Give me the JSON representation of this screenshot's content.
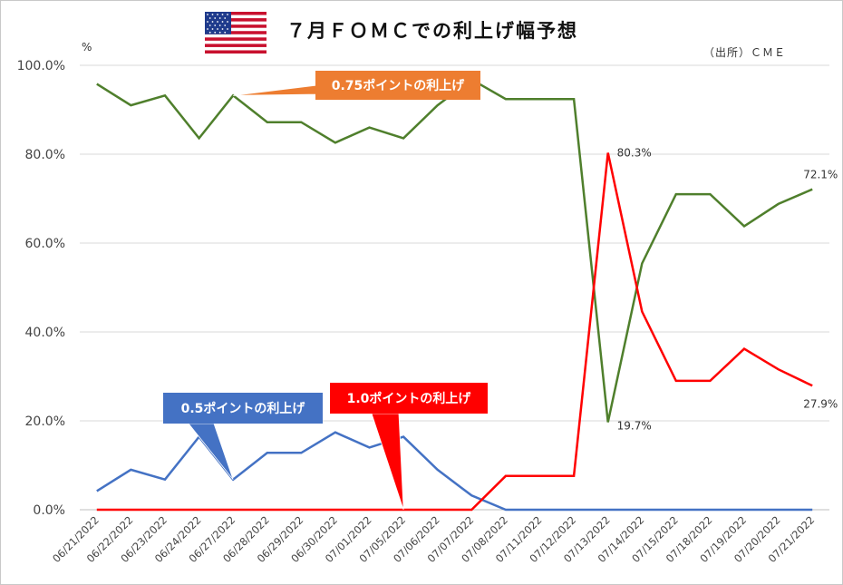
{
  "title": "７月ＦＯＭＣでの利上げ幅予想",
  "unit": "%",
  "source": "（出所）ＣＭＥ",
  "flag_icon": "us-flag-icon",
  "colors": {
    "s075": "#4f7f2c",
    "s05": "#4472c4",
    "s10": "#ff0000",
    "c075": "#ed7d31",
    "c05": "#4472c4",
    "c10": "#ff0000",
    "grid": "#d9d9d9"
  },
  "chart_data": {
    "type": "line",
    "ylim": [
      0,
      100
    ],
    "yticks": [
      "0.0%",
      "20.0%",
      "40.0%",
      "60.0%",
      "80.0%",
      "100.0%"
    ],
    "categories": [
      "06/21/2022",
      "06/22/2022",
      "06/23/2022",
      "06/24/2022",
      "06/27/2022",
      "06/28/2022",
      "06/29/2022",
      "06/30/2022",
      "07/01/2022",
      "07/05/2022",
      "07/06/2022",
      "07/07/2022",
      "07/08/2022",
      "07/11/2022",
      "07/12/2022",
      "07/13/2022",
      "07/14/2022",
      "07/15/2022",
      "07/18/2022",
      "07/19/2022",
      "07/20/2022",
      "07/21/2022"
    ],
    "series": [
      {
        "name": "0.75ポイントの利上げ",
        "values": [
          95.8,
          91.0,
          93.2,
          83.6,
          93.2,
          87.2,
          87.2,
          82.6,
          86.0,
          83.6,
          91.0,
          96.8,
          92.4,
          92.4,
          92.4,
          19.7,
          55.4,
          71.0,
          71.0,
          63.8,
          68.8,
          72.1
        ]
      },
      {
        "name": "0.5ポイントの利上げ",
        "values": [
          4.2,
          9.0,
          6.8,
          16.4,
          6.8,
          12.8,
          12.8,
          17.4,
          14.0,
          16.4,
          9.0,
          3.2,
          0,
          0,
          0,
          0,
          0,
          0,
          0,
          0,
          0,
          0
        ]
      },
      {
        "name": "1.0ポイントの利上げ",
        "values": [
          0,
          0,
          0,
          0,
          0,
          0,
          0,
          0,
          0,
          0,
          0,
          0,
          7.6,
          7.6,
          7.6,
          80.3,
          44.6,
          29.0,
          29.0,
          36.2,
          31.6,
          27.9
        ]
      }
    ],
    "data_labels": [
      "80.3%",
      "19.7%",
      "72.1%",
      "27.9%"
    ],
    "callouts": [
      "0.75ポイントの利上げ",
      "0.5ポイントの利上げ",
      "1.0ポイントの利上げ"
    ]
  }
}
